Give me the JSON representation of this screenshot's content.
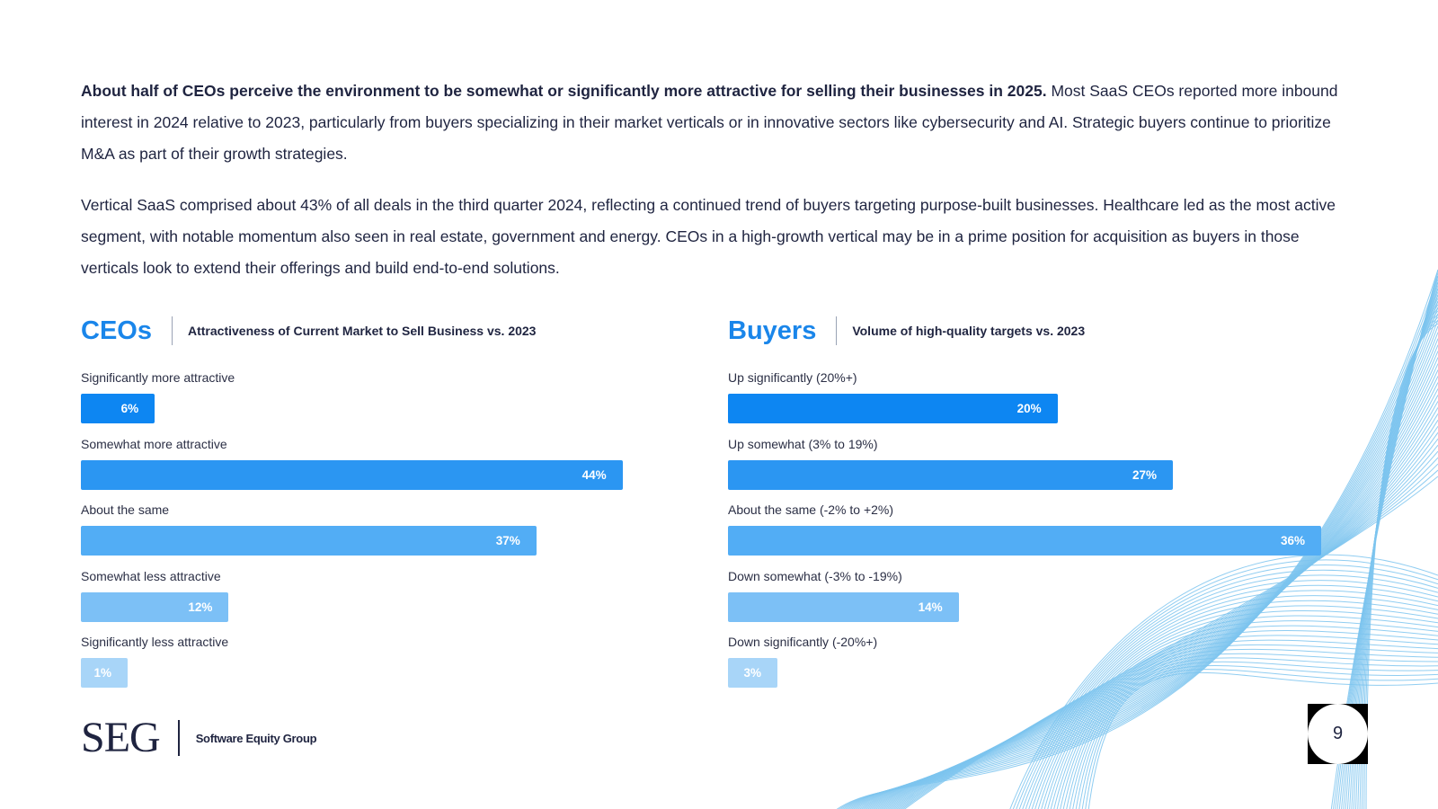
{
  "intro": {
    "p1_bold": "About half of CEOs perceive the environment to be somewhat or significantly more attractive for selling their businesses in 2025.",
    "p1_rest": " Most SaaS CEOs reported more inbound interest in 2024 relative to 2023, particularly from buyers specializing in their market verticals or in innovative sectors like cybersecurity and AI. Strategic buyers continue to prioritize M&A as part of their growth strategies.",
    "p2": "Vertical SaaS comprised about 43% of all deals in the third quarter 2024, reflecting a continued trend of buyers targeting purpose-built businesses. Healthcare led as the most active segment, with notable momentum also seen in real estate, government and energy. CEOs in a high-growth vertical may be in a prime position for acquisition as buyers in those verticals look to extend their offerings and build end-to-end solutions."
  },
  "chart_data": [
    {
      "type": "bar",
      "orientation": "horizontal",
      "title": "CEOs",
      "subtitle": "Attractiveness of Current Market to Sell Business vs. 2023",
      "categories": [
        "Significantly more attractive",
        "Somewhat more attractive",
        "About the same",
        "Somewhat less attractive",
        "Significantly less attractive"
      ],
      "values": [
        6,
        44,
        37,
        12,
        1
      ],
      "value_labels": [
        "6%",
        "44%",
        "37%",
        "12%",
        "1%"
      ],
      "colors": [
        "#0d86f2",
        "#2b96f2",
        "#52adf5",
        "#7cc0f6",
        "#a8d5f8"
      ],
      "xlim": [
        0,
        46
      ]
    },
    {
      "type": "bar",
      "orientation": "horizontal",
      "title": "Buyers",
      "subtitle": "Volume of high-quality targets vs. 2023",
      "categories": [
        "Up significantly (20%+)",
        "Up somewhat (3% to 19%)",
        "About the same (-2% to +2%)",
        "Down somewhat (-3% to -19%)",
        "Down significantly (-20%+)"
      ],
      "values": [
        20,
        27,
        36,
        14,
        3
      ],
      "value_labels": [
        "20%",
        "27%",
        "36%",
        "14%",
        "3%"
      ],
      "colors": [
        "#0d86f2",
        "#2b96f2",
        "#52adf5",
        "#7cc0f6",
        "#a8d5f8"
      ],
      "xlim": [
        0,
        36
      ]
    }
  ],
  "footer": {
    "logo_mark": "SEG",
    "logo_text": "Software Equity Group",
    "page_number": "9"
  },
  "colors": {
    "accent": "#1a86ea",
    "text": "#1f2440",
    "wave": "#7cc4ee"
  }
}
